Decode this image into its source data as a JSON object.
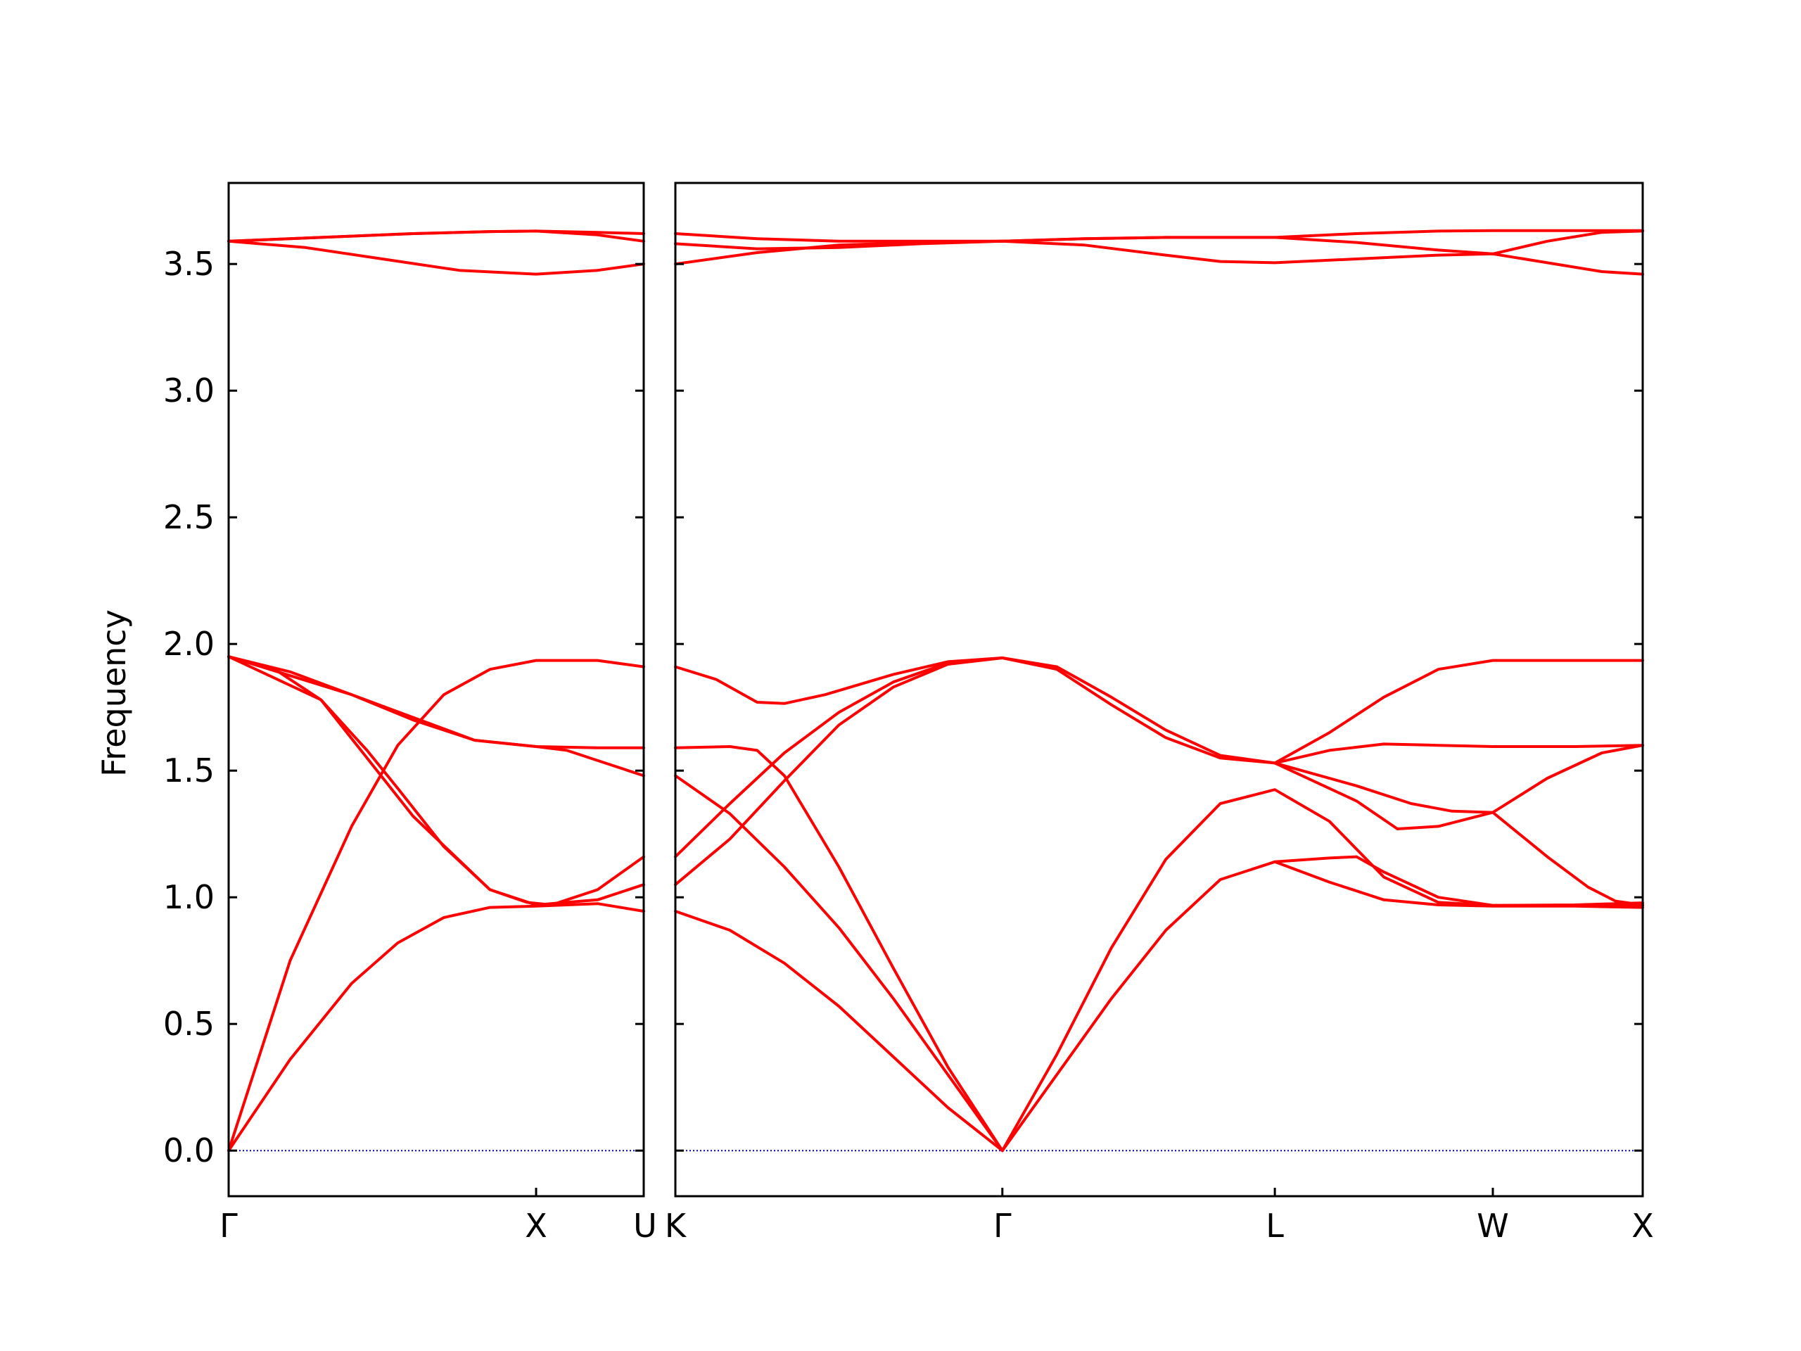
{
  "chart_data": {
    "type": "line",
    "title": "",
    "ylabel": "Frequency",
    "xlabel": "",
    "ylim": [
      -0.18,
      3.82
    ],
    "yticks": [
      0.0,
      0.5,
      1.0,
      1.5,
      2.0,
      2.5,
      3.0,
      3.5
    ],
    "ytick_labels": [
      "0.0",
      "0.5",
      "1.0",
      "1.5",
      "2.0",
      "2.5",
      "3.0",
      "3.5"
    ],
    "grid": false,
    "legend": "none",
    "colors": {
      "bands": "#ff0000",
      "zero_line": "#0000cc",
      "axes": "#000000"
    },
    "panels": [
      {
        "id": "left",
        "xlim": [
          0,
          1.35
        ],
        "xticks": [
          0,
          1.0,
          1.35
        ],
        "xtick_labels": [
          "Γ",
          "X",
          "U"
        ],
        "bands": [
          [
            [
              0,
              0
            ],
            [
              0.2,
              0.75
            ],
            [
              0.4,
              1.28
            ],
            [
              0.55,
              1.6
            ],
            [
              0.7,
              1.8
            ],
            [
              0.85,
              1.9
            ],
            [
              1.0,
              1.935
            ],
            [
              1.2,
              1.935
            ],
            [
              1.35,
              1.91
            ]
          ],
          [
            [
              0,
              0
            ],
            [
              0.2,
              0.36
            ],
            [
              0.4,
              0.66
            ],
            [
              0.55,
              0.82
            ],
            [
              0.7,
              0.92
            ],
            [
              0.85,
              0.96
            ],
            [
              1.0,
              0.965
            ],
            [
              1.2,
              0.975
            ],
            [
              1.35,
              0.945
            ]
          ],
          [
            [
              0,
              1.95
            ],
            [
              0.15,
              1.9
            ],
            [
              0.3,
              1.78
            ],
            [
              0.45,
              1.58
            ],
            [
              0.55,
              1.43
            ],
            [
              0.7,
              1.2
            ],
            [
              0.85,
              1.03
            ],
            [
              0.97,
              0.98
            ],
            [
              1.05,
              0.97
            ],
            [
              1.2,
              1.03
            ],
            [
              1.35,
              1.16
            ]
          ],
          [
            [
              0,
              1.95
            ],
            [
              0.2,
              1.89
            ],
            [
              0.4,
              1.8
            ],
            [
              0.6,
              1.7
            ],
            [
              0.8,
              1.62
            ],
            [
              1.0,
              1.595
            ],
            [
              1.1,
              1.58
            ],
            [
              1.25,
              1.52
            ],
            [
              1.35,
              1.48
            ]
          ],
          [
            [
              0,
              1.95
            ],
            [
              0.4,
              1.8
            ],
            [
              0.8,
              1.62
            ],
            [
              1.0,
              1.595
            ],
            [
              1.2,
              1.59
            ],
            [
              1.35,
              1.59
            ]
          ],
          [
            [
              0,
              1.95
            ],
            [
              0.3,
              1.78
            ],
            [
              0.6,
              1.32
            ],
            [
              0.85,
              1.03
            ],
            [
              1.0,
              0.97
            ],
            [
              1.2,
              0.99
            ],
            [
              1.35,
              1.05
            ]
          ],
          [
            [
              0,
              3.59
            ],
            [
              0.25,
              3.565
            ],
            [
              0.5,
              3.52
            ],
            [
              0.75,
              3.475
            ],
            [
              1.0,
              3.46
            ],
            [
              1.2,
              3.475
            ],
            [
              1.35,
              3.5
            ]
          ],
          [
            [
              0,
              3.59
            ],
            [
              0.3,
              3.605
            ],
            [
              0.6,
              3.62
            ],
            [
              0.85,
              3.628
            ],
            [
              1.0,
              3.63
            ],
            [
              1.2,
              3.615
            ],
            [
              1.35,
              3.59
            ]
          ],
          [
            [
              0,
              3.59
            ],
            [
              0.3,
              3.605
            ],
            [
              0.6,
              3.62
            ],
            [
              0.85,
              3.628
            ],
            [
              1.0,
              3.63
            ],
            [
              1.2,
              3.625
            ],
            [
              1.35,
              3.62
            ]
          ]
        ]
      },
      {
        "id": "right",
        "xlim": [
          0,
          3.55
        ],
        "xticks": [
          0,
          1.2,
          2.2,
          3.0,
          3.55
        ],
        "xtick_labels": [
          "K",
          "Γ",
          "L",
          "W",
          "X"
        ],
        "bands": [
          [
            [
              0,
              0.945
            ],
            [
              0.2,
              0.87
            ],
            [
              0.4,
              0.74
            ],
            [
              0.6,
              0.57
            ],
            [
              0.8,
              0.37
            ],
            [
              1.0,
              0.17
            ],
            [
              1.2,
              0
            ]
          ],
          [
            [
              0,
              1.48
            ],
            [
              0.2,
              1.33
            ],
            [
              0.4,
              1.12
            ],
            [
              0.6,
              0.88
            ],
            [
              0.8,
              0.6
            ],
            [
              1.0,
              0.3
            ],
            [
              1.2,
              0
            ]
          ],
          [
            [
              0,
              1.59
            ],
            [
              0.2,
              1.595
            ],
            [
              0.3,
              1.58
            ],
            [
              0.4,
              1.48
            ],
            [
              0.6,
              1.12
            ],
            [
              0.8,
              0.72
            ],
            [
              1.0,
              0.33
            ],
            [
              1.2,
              0
            ]
          ],
          [
            [
              0,
              1.16
            ],
            [
              0.2,
              1.37
            ],
            [
              0.4,
              1.57
            ],
            [
              0.6,
              1.73
            ],
            [
              0.8,
              1.85
            ],
            [
              1.0,
              1.925
            ],
            [
              1.2,
              1.945
            ]
          ],
          [
            [
              0,
              1.05
            ],
            [
              0.2,
              1.23
            ],
            [
              0.4,
              1.46
            ],
            [
              0.6,
              1.68
            ],
            [
              0.8,
              1.83
            ],
            [
              1.0,
              1.92
            ],
            [
              1.2,
              1.945
            ]
          ],
          [
            [
              0,
              1.91
            ],
            [
              0.15,
              1.86
            ],
            [
              0.3,
              1.77
            ],
            [
              0.4,
              1.765
            ],
            [
              0.55,
              1.8
            ],
            [
              0.8,
              1.88
            ],
            [
              1.0,
              1.93
            ],
            [
              1.2,
              1.945
            ]
          ],
          [
            [
              1.2,
              1.945
            ],
            [
              1.4,
              1.91
            ],
            [
              1.6,
              1.79
            ],
            [
              1.8,
              1.66
            ],
            [
              2.0,
              1.56
            ],
            [
              2.2,
              1.53
            ],
            [
              2.5,
              1.44
            ],
            [
              2.7,
              1.37
            ],
            [
              2.85,
              1.34
            ],
            [
              3.0,
              1.335
            ],
            [
              3.2,
              1.16
            ],
            [
              3.35,
              1.04
            ],
            [
              3.45,
              0.985
            ],
            [
              3.55,
              0.97
            ]
          ],
          [
            [
              1.2,
              1.945
            ],
            [
              1.4,
              1.9
            ],
            [
              1.6,
              1.76
            ],
            [
              1.8,
              1.63
            ],
            [
              2.0,
              1.55
            ],
            [
              2.2,
              1.53
            ],
            [
              2.5,
              1.38
            ],
            [
              2.65,
              1.27
            ],
            [
              2.8,
              1.28
            ],
            [
              3.0,
              1.335
            ],
            [
              3.2,
              1.47
            ],
            [
              3.4,
              1.57
            ],
            [
              3.55,
              1.6
            ]
          ],
          [
            [
              1.2,
              0
            ],
            [
              1.4,
              0.38
            ],
            [
              1.6,
              0.8
            ],
            [
              1.8,
              1.15
            ],
            [
              2.0,
              1.37
            ],
            [
              2.2,
              1.425
            ],
            [
              2.4,
              1.3
            ],
            [
              2.6,
              1.08
            ],
            [
              2.8,
              0.98
            ],
            [
              3.0,
              0.968
            ],
            [
              3.3,
              0.968
            ],
            [
              3.55,
              0.968
            ]
          ],
          [
            [
              1.2,
              0
            ],
            [
              1.4,
              0.3
            ],
            [
              1.6,
              0.6
            ],
            [
              1.8,
              0.87
            ],
            [
              2.0,
              1.07
            ],
            [
              2.2,
              1.14
            ],
            [
              2.4,
              1.06
            ],
            [
              2.6,
              0.99
            ],
            [
              2.8,
              0.97
            ],
            [
              3.0,
              0.965
            ],
            [
              3.3,
              0.965
            ],
            [
              3.55,
              0.96
            ]
          ],
          [
            [
              2.2,
              1.14
            ],
            [
              2.4,
              1.155
            ],
            [
              2.5,
              1.16
            ],
            [
              2.6,
              1.1
            ],
            [
              2.8,
              1.0
            ],
            [
              3.0,
              0.968
            ],
            [
              3.3,
              0.97
            ],
            [
              3.55,
              0.978
            ]
          ],
          [
            [
              2.2,
              1.53
            ],
            [
              2.4,
              1.58
            ],
            [
              2.6,
              1.605
            ],
            [
              2.8,
              1.6
            ],
            [
              3.0,
              1.595
            ],
            [
              3.3,
              1.595
            ],
            [
              3.55,
              1.6
            ]
          ],
          [
            [
              2.2,
              1.53
            ],
            [
              2.4,
              1.65
            ],
            [
              2.6,
              1.79
            ],
            [
              2.8,
              1.9
            ],
            [
              3.0,
              1.935
            ],
            [
              3.3,
              1.935
            ],
            [
              3.55,
              1.935
            ]
          ],
          [
            [
              0,
              3.62
            ],
            [
              0.3,
              3.6
            ],
            [
              0.6,
              3.59
            ],
            [
              0.9,
              3.59
            ],
            [
              1.2,
              3.59
            ],
            [
              1.5,
              3.6
            ],
            [
              1.8,
              3.605
            ],
            [
              2.2,
              3.605
            ],
            [
              2.5,
              3.585
            ],
            [
              2.8,
              3.555
            ],
            [
              3.0,
              3.54
            ],
            [
              3.2,
              3.59
            ],
            [
              3.4,
              3.625
            ],
            [
              3.55,
              3.63
            ]
          ],
          [
            [
              0,
              3.58
            ],
            [
              0.3,
              3.56
            ],
            [
              0.6,
              3.565
            ],
            [
              0.9,
              3.58
            ],
            [
              1.2,
              3.59
            ],
            [
              1.5,
              3.575
            ],
            [
              1.8,
              3.535
            ],
            [
              2.0,
              3.51
            ],
            [
              2.2,
              3.505
            ],
            [
              2.5,
              3.52
            ],
            [
              2.8,
              3.535
            ],
            [
              3.0,
              3.54
            ],
            [
              3.2,
              3.505
            ],
            [
              3.4,
              3.47
            ],
            [
              3.55,
              3.46
            ]
          ],
          [
            [
              0,
              3.5
            ],
            [
              0.3,
              3.545
            ],
            [
              0.6,
              3.575
            ],
            [
              0.9,
              3.585
            ],
            [
              1.2,
              3.59
            ],
            [
              1.5,
              3.6
            ],
            [
              1.8,
              3.605
            ],
            [
              2.2,
              3.605
            ],
            [
              2.5,
              3.62
            ],
            [
              2.8,
              3.63
            ],
            [
              3.0,
              3.632
            ],
            [
              3.3,
              3.632
            ],
            [
              3.55,
              3.632
            ]
          ]
        ]
      }
    ]
  }
}
